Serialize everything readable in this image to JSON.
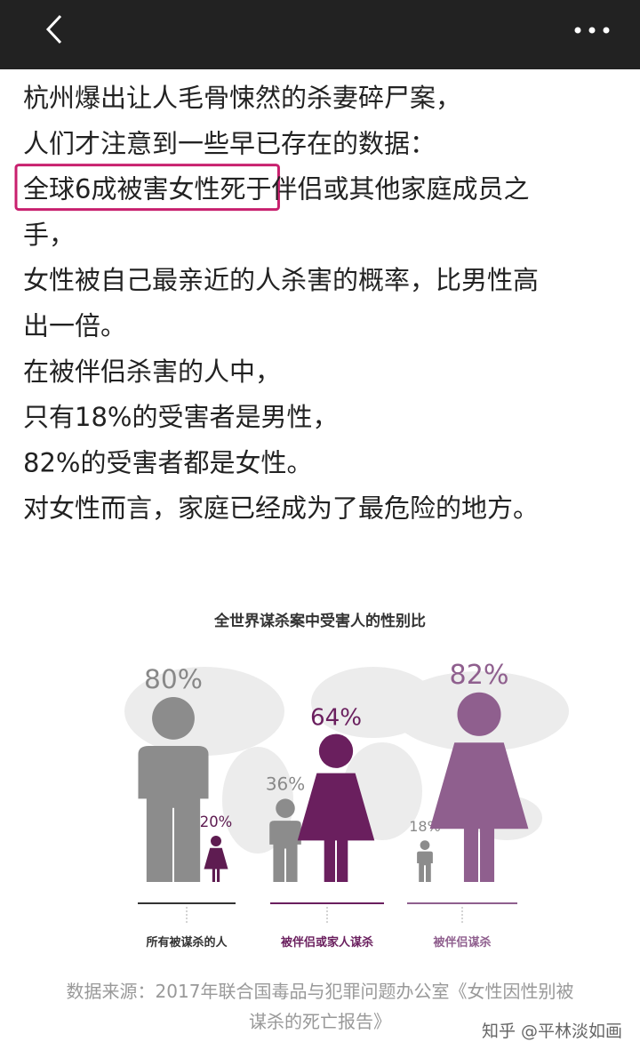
{
  "article": {
    "lines": [
      "杭州爆出让人毛骨悚然的杀妻碎尸案，",
      "人们才注意到一些早已存在的数据：",
      [
        "全球6成被害女性死于",
        "伴侣或其他家庭成员之"
      ],
      "手，",
      "女性被自己最亲近的人杀害的概率，比男性高",
      "出一倍。",
      "在被伴侣杀害的人中，",
      "只有18%的受害者是男性，",
      "82%的受害者都是女性。",
      "对女性而言，家庭已经成为了最危险的地方。"
    ]
  },
  "chart_data": {
    "type": "pictogram",
    "title": "全世界谋杀案中受害人的性别比",
    "categories": [
      "所有被谋杀的人",
      "被伴侣或家人谋杀",
      "被伴侣谋杀"
    ],
    "series": [
      {
        "shape": "male",
        "colors": [
          "#8c8c8c",
          "#8c8c8c",
          "#8c8c8c"
        ],
        "values": [
          80,
          36,
          18
        ],
        "value_labels": [
          "80%",
          "36%",
          "18%"
        ]
      },
      {
        "shape": "female",
        "colors": [
          "#5e1c51",
          "#6a1f5e",
          "#8f5f8e"
        ],
        "values": [
          20,
          64,
          82
        ],
        "value_labels": [
          "20%",
          "64%",
          "82%"
        ]
      }
    ]
  },
  "caption": [
    "数据来源：2017年联合国毒品与犯罪问题办公室《女性因性别被",
    "谋杀的死亡报告》"
  ],
  "watermark": "知乎 @平林淡如画"
}
